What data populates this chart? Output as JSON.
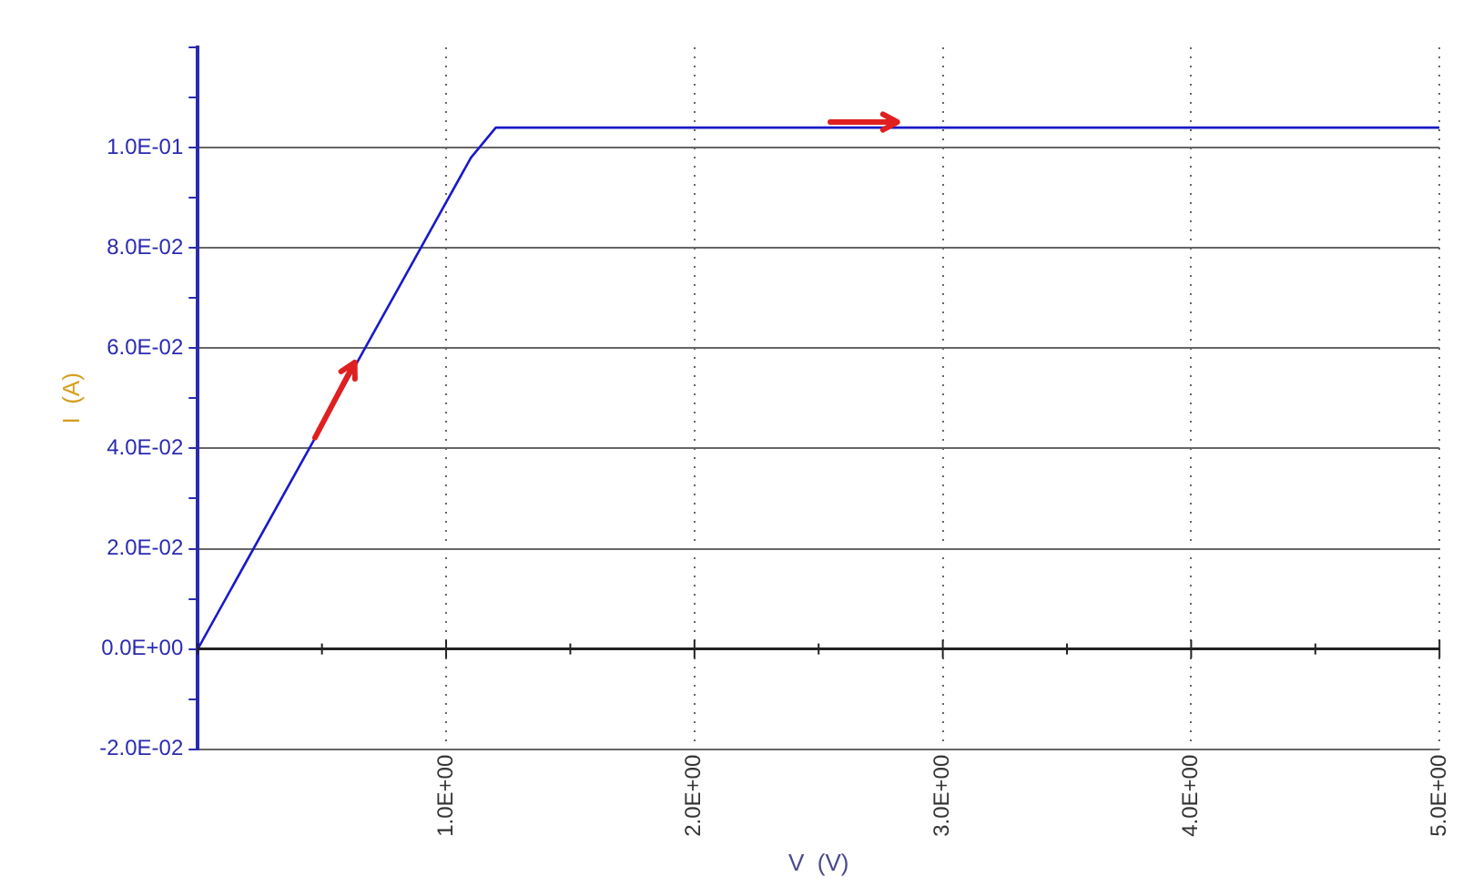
{
  "chart_data": {
    "type": "line",
    "xlabel": "V  (V)",
    "ylabel": "I  (A)",
    "x": [
      0,
      1.1,
      1.2,
      5
    ],
    "series": [
      {
        "color": "#1a1ac8",
        "values": [
          0,
          0.098,
          0.104,
          0.104
        ]
      }
    ],
    "xlim": [
      0,
      5
    ],
    "xticks": [
      {
        "value": 0,
        "label": null
      },
      {
        "value": 0.5,
        "label": null
      },
      {
        "value": 1,
        "label": "1.0E+00"
      },
      {
        "value": 1.5,
        "label": null
      },
      {
        "value": 2,
        "label": "2.0E+00"
      },
      {
        "value": 2.5,
        "label": null
      },
      {
        "value": 3,
        "label": "3.0E+00"
      },
      {
        "value": 3.5,
        "label": null
      },
      {
        "value": 4,
        "label": "4.0E+00"
      },
      {
        "value": 4.5,
        "label": null
      },
      {
        "value": 5,
        "label": "5.0E+00"
      }
    ],
    "ylim": [
      -0.02,
      0.12
    ],
    "yticks": [
      {
        "value": -0.02,
        "label": "-2.0E-02"
      },
      {
        "value": -0.01,
        "label": null
      },
      {
        "value": 0,
        "label": "0.0E+00"
      },
      {
        "value": 0.01,
        "label": null
      },
      {
        "value": 0.02,
        "label": "2.0E-02"
      },
      {
        "value": 0.03,
        "label": null
      },
      {
        "value": 0.04,
        "label": "4.0E-02"
      },
      {
        "value": 0.05,
        "label": null
      },
      {
        "value": 0.06,
        "label": "6.0E-02"
      },
      {
        "value": 0.07,
        "label": null
      },
      {
        "value": 0.08,
        "label": "8.0E-02"
      },
      {
        "value": 0.09,
        "label": null
      },
      {
        "value": 0.1,
        "label": "1.0E-01"
      },
      {
        "value": 0.11,
        "label": null
      },
      {
        "value": 0.12,
        "label": null
      }
    ],
    "grid": true,
    "legend": false,
    "marker": "none",
    "line_style": "solid"
  }
}
